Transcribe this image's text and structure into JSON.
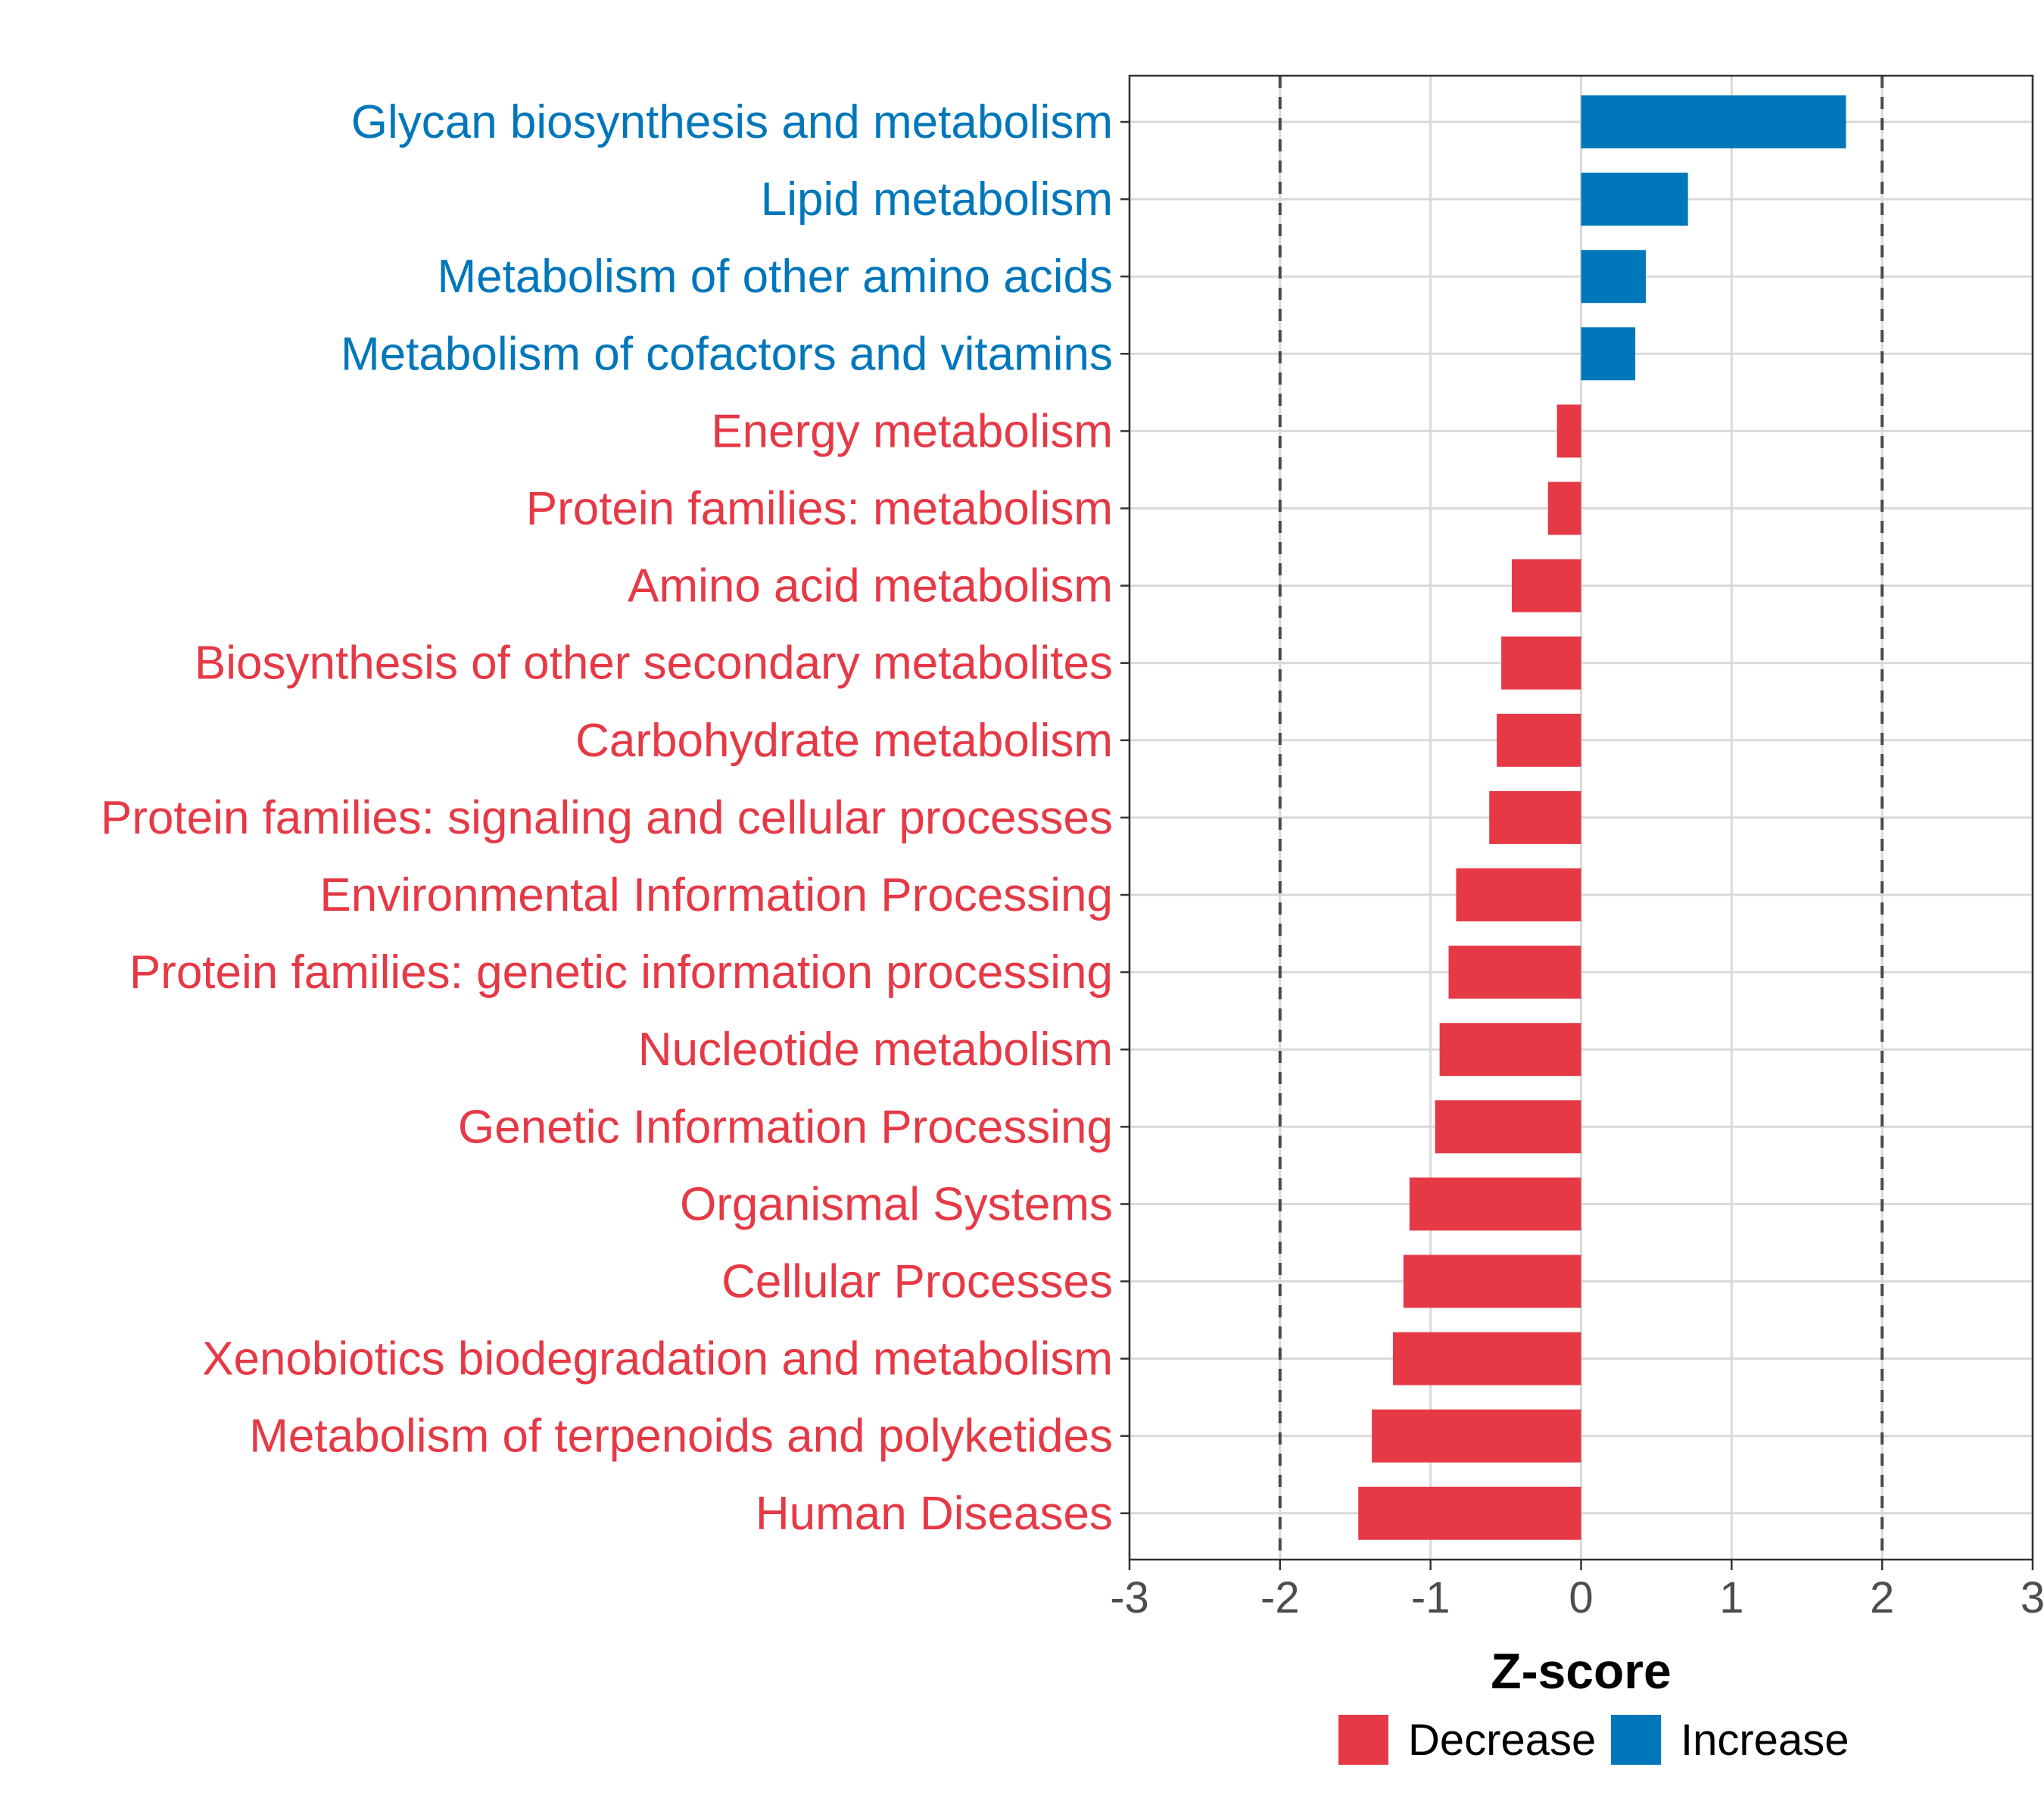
{
  "chart_data": {
    "type": "bar",
    "orientation": "horizontal",
    "xlabel": "Z-score",
    "xlim": [
      -3,
      3
    ],
    "xticks": [
      "-3",
      "-2",
      "-1",
      "0",
      "1",
      "2",
      "3"
    ],
    "reference_lines": [
      -2,
      2
    ],
    "grid": true,
    "legend_position": "bottom",
    "colors": {
      "Decrease": "#e63946",
      "Increase": "#0077bb"
    },
    "legend": [
      "Decrease",
      "Increase"
    ],
    "categories": [
      "Glycan biosynthesis and metabolism",
      "Lipid metabolism",
      "Metabolism of other amino acids",
      "Metabolism of cofactors and vitamins",
      "Energy metabolism",
      "Protein families: metabolism",
      "Amino acid metabolism",
      "Biosynthesis of other secondary metabolites",
      "Carbohydrate metabolism",
      "Protein families: signaling and cellular processes",
      "Environmental Information Processing",
      "Protein families: genetic information processing",
      "Nucleotide metabolism",
      "Genetic Information Processing",
      "Organismal Systems",
      "Cellular Processes",
      "Xenobiotics biodegradation and metabolism",
      "Metabolism of terpenoids and polyketides",
      "Human Diseases"
    ],
    "values": [
      1.76,
      0.71,
      0.43,
      0.36,
      -0.16,
      -0.22,
      -0.46,
      -0.53,
      -0.56,
      -0.61,
      -0.83,
      -0.88,
      -0.94,
      -0.97,
      -1.14,
      -1.18,
      -1.25,
      -1.39,
      -1.48
    ],
    "groups": [
      "Increase",
      "Increase",
      "Increase",
      "Increase",
      "Decrease",
      "Decrease",
      "Decrease",
      "Decrease",
      "Decrease",
      "Decrease",
      "Decrease",
      "Decrease",
      "Decrease",
      "Decrease",
      "Decrease",
      "Decrease",
      "Decrease",
      "Decrease",
      "Decrease"
    ]
  }
}
